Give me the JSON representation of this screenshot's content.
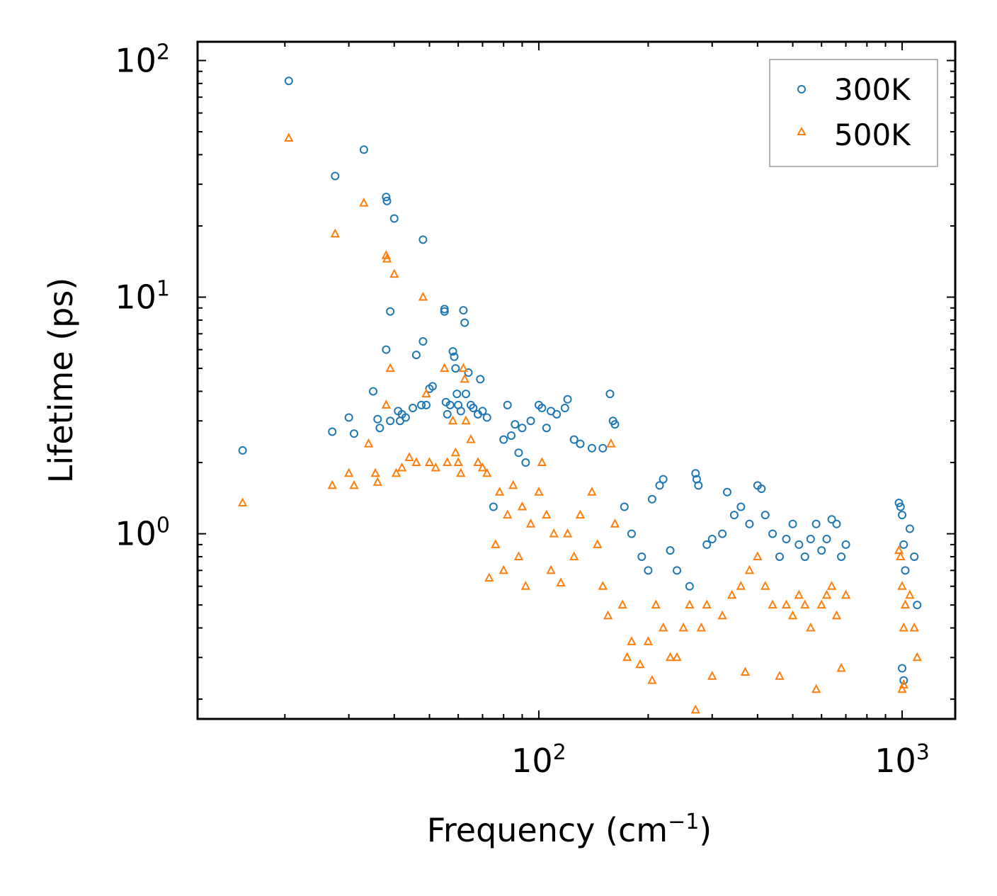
{
  "chart_data": {
    "type": "scatter",
    "xscale": "log",
    "yscale": "log",
    "xlabel": "Frequency (cm",
    "xlabel_superscript": "−1",
    "xlabel_suffix": ")",
    "ylabel": "Lifetime (ps)",
    "xlim": [
      11.5,
      1400
    ],
    "ylim": [
      0.165,
      120
    ],
    "legend_position": "top-right",
    "xtick_labels": [
      {
        "value": 100,
        "base": "10",
        "exp": "2"
      },
      {
        "value": 1000,
        "base": "10",
        "exp": "3"
      }
    ],
    "ytick_labels": [
      {
        "value": 1,
        "base": "10",
        "exp": "0"
      },
      {
        "value": 10,
        "base": "10",
        "exp": "1"
      },
      {
        "value": 100,
        "base": "10",
        "exp": "2"
      }
    ],
    "series": [
      {
        "name": "300K",
        "color": "#1f77b4",
        "marker": "circle",
        "points": [
          [
            15.3,
            2.25
          ],
          [
            20.5,
            82.0
          ],
          [
            27.0,
            2.7
          ],
          [
            27.5,
            32.5
          ],
          [
            30.0,
            3.1
          ],
          [
            31.0,
            2.65
          ],
          [
            33.0,
            42.0
          ],
          [
            35.0,
            4.0
          ],
          [
            36.0,
            3.05
          ],
          [
            36.5,
            2.8
          ],
          [
            38.0,
            26.5
          ],
          [
            38.2,
            25.5
          ],
          [
            38.0,
            6.0
          ],
          [
            39.0,
            8.7
          ],
          [
            39.0,
            3.0
          ],
          [
            40.0,
            21.5
          ],
          [
            41.0,
            3.3
          ],
          [
            41.5,
            3.0
          ],
          [
            42.0,
            3.2
          ],
          [
            43.0,
            3.1
          ],
          [
            45.0,
            3.4
          ],
          [
            46.0,
            5.7
          ],
          [
            47.5,
            3.5
          ],
          [
            48.0,
            17.5
          ],
          [
            48.0,
            6.5
          ],
          [
            49.0,
            3.5
          ],
          [
            50.0,
            4.1
          ],
          [
            51.0,
            4.2
          ],
          [
            55.0,
            8.7
          ],
          [
            55.0,
            8.9
          ],
          [
            55.5,
            3.6
          ],
          [
            56.0,
            3.2
          ],
          [
            57.0,
            3.5
          ],
          [
            58.0,
            5.9
          ],
          [
            58.5,
            5.6
          ],
          [
            59.0,
            5.0
          ],
          [
            59.5,
            3.9
          ],
          [
            60.0,
            3.5
          ],
          [
            61.0,
            3.3
          ],
          [
            62.0,
            8.8
          ],
          [
            62.5,
            7.8
          ],
          [
            63.0,
            3.9
          ],
          [
            64.0,
            4.8
          ],
          [
            65.0,
            3.5
          ],
          [
            66.0,
            3.4
          ],
          [
            68.0,
            3.2
          ],
          [
            69.0,
            4.5
          ],
          [
            70.0,
            3.3
          ],
          [
            72.0,
            3.1
          ],
          [
            75.0,
            1.3
          ],
          [
            80.0,
            2.5
          ],
          [
            82.0,
            3.5
          ],
          [
            84.0,
            2.6
          ],
          [
            86.0,
            2.9
          ],
          [
            88.0,
            2.2
          ],
          [
            90.0,
            2.8
          ],
          [
            92.0,
            2.0
          ],
          [
            95.0,
            3.0
          ],
          [
            100.0,
            3.5
          ],
          [
            102.0,
            3.4
          ],
          [
            105.0,
            2.8
          ],
          [
            108.0,
            3.3
          ],
          [
            112.0,
            3.2
          ],
          [
            118.0,
            3.4
          ],
          [
            120.0,
            3.7
          ],
          [
            125.0,
            2.5
          ],
          [
            130.0,
            2.4
          ],
          [
            140.0,
            2.3
          ],
          [
            150.0,
            2.3
          ],
          [
            157.0,
            3.9
          ],
          [
            160.0,
            3.0
          ],
          [
            162.0,
            2.9
          ],
          [
            172.0,
            1.3
          ],
          [
            180.0,
            1.0
          ],
          [
            192.0,
            0.8
          ],
          [
            200.0,
            0.7
          ],
          [
            205.0,
            1.4
          ],
          [
            215.0,
            1.6
          ],
          [
            220.0,
            1.7
          ],
          [
            230.0,
            0.85
          ],
          [
            240.0,
            0.7
          ],
          [
            260.0,
            0.6
          ],
          [
            270.0,
            1.8
          ],
          [
            272.0,
            1.7
          ],
          [
            275.0,
            1.6
          ],
          [
            290.0,
            0.9
          ],
          [
            300.0,
            0.95
          ],
          [
            320.0,
            1.0
          ],
          [
            330.0,
            1.5
          ],
          [
            345.0,
            1.2
          ],
          [
            360.0,
            1.3
          ],
          [
            380.0,
            1.1
          ],
          [
            400.0,
            1.6
          ],
          [
            410.0,
            1.55
          ],
          [
            420.0,
            1.2
          ],
          [
            440.0,
            1.0
          ],
          [
            460.0,
            0.8
          ],
          [
            480.0,
            0.95
          ],
          [
            500.0,
            1.1
          ],
          [
            520.0,
            0.9
          ],
          [
            540.0,
            0.8
          ],
          [
            560.0,
            0.95
          ],
          [
            580.0,
            1.1
          ],
          [
            600.0,
            0.85
          ],
          [
            620.0,
            0.95
          ],
          [
            640.0,
            1.15
          ],
          [
            660.0,
            1.1
          ],
          [
            680.0,
            0.8
          ],
          [
            700.0,
            0.9
          ],
          [
            980.0,
            1.35
          ],
          [
            990.0,
            1.3
          ],
          [
            1000.0,
            1.2
          ],
          [
            1010.0,
            0.9
          ],
          [
            1020.0,
            0.7
          ],
          [
            1050.0,
            1.05
          ],
          [
            1080.0,
            0.8
          ],
          [
            1100.0,
            0.5
          ],
          [
            1000.0,
            0.27
          ],
          [
            1010.0,
            0.24
          ]
        ]
      },
      {
        "name": "500K",
        "color": "#ff7f0e",
        "marker": "triangle",
        "points": [
          [
            15.3,
            1.35
          ],
          [
            20.5,
            47.0
          ],
          [
            27.0,
            1.6
          ],
          [
            27.5,
            18.5
          ],
          [
            30.0,
            1.8
          ],
          [
            31.0,
            1.6
          ],
          [
            33.0,
            25.0
          ],
          [
            34.0,
            2.4
          ],
          [
            35.5,
            1.8
          ],
          [
            36.0,
            1.65
          ],
          [
            38.0,
            15.0
          ],
          [
            38.2,
            14.5
          ],
          [
            38.0,
            3.5
          ],
          [
            39.0,
            5.0
          ],
          [
            40.0,
            12.5
          ],
          [
            40.5,
            1.8
          ],
          [
            42.0,
            1.9
          ],
          [
            44.0,
            2.1
          ],
          [
            46.0,
            2.0
          ],
          [
            48.0,
            10.0
          ],
          [
            49.0,
            3.9
          ],
          [
            50.0,
            2.0
          ],
          [
            52.0,
            1.9
          ],
          [
            55.0,
            5.0
          ],
          [
            56.0,
            2.0
          ],
          [
            58.0,
            3.0
          ],
          [
            59.0,
            2.2
          ],
          [
            60.0,
            2.0
          ],
          [
            61.0,
            1.8
          ],
          [
            62.0,
            5.0
          ],
          [
            62.5,
            4.5
          ],
          [
            63.0,
            3.0
          ],
          [
            65.0,
            2.5
          ],
          [
            68.0,
            2.0
          ],
          [
            70.0,
            1.9
          ],
          [
            72.0,
            1.8
          ],
          [
            73.0,
            0.65
          ],
          [
            76.0,
            0.9
          ],
          [
            78.0,
            1.5
          ],
          [
            80.0,
            0.7
          ],
          [
            82.0,
            1.2
          ],
          [
            85.0,
            1.6
          ],
          [
            88.0,
            0.8
          ],
          [
            90.0,
            1.3
          ],
          [
            92.0,
            0.6
          ],
          [
            95.0,
            1.1
          ],
          [
            100.0,
            1.5
          ],
          [
            102.0,
            2.0
          ],
          [
            105.0,
            1.2
          ],
          [
            108.0,
            0.7
          ],
          [
            110.0,
            1.0
          ],
          [
            115.0,
            0.62
          ],
          [
            120.0,
            1.0
          ],
          [
            125.0,
            0.8
          ],
          [
            130.0,
            1.2
          ],
          [
            140.0,
            1.5
          ],
          [
            145.0,
            0.9
          ],
          [
            150.0,
            0.6
          ],
          [
            155.0,
            0.45
          ],
          [
            158.0,
            2.4
          ],
          [
            162.0,
            1.1
          ],
          [
            170.0,
            0.5
          ],
          [
            175.0,
            0.3
          ],
          [
            180.0,
            0.35
          ],
          [
            190.0,
            0.28
          ],
          [
            200.0,
            0.35
          ],
          [
            205.0,
            0.24
          ],
          [
            210.0,
            0.5
          ],
          [
            220.0,
            0.4
          ],
          [
            230.0,
            0.3
          ],
          [
            240.0,
            0.3
          ],
          [
            250.0,
            0.4
          ],
          [
            260.0,
            0.5
          ],
          [
            270.0,
            0.18
          ],
          [
            280.0,
            0.4
          ],
          [
            290.0,
            0.5
          ],
          [
            300.0,
            0.25
          ],
          [
            320.0,
            0.45
          ],
          [
            340.0,
            0.55
          ],
          [
            360.0,
            0.6
          ],
          [
            370.0,
            0.26
          ],
          [
            380.0,
            0.7
          ],
          [
            400.0,
            0.8
          ],
          [
            420.0,
            0.6
          ],
          [
            440.0,
            0.5
          ],
          [
            460.0,
            0.25
          ],
          [
            480.0,
            0.5
          ],
          [
            500.0,
            0.45
          ],
          [
            520.0,
            0.55
          ],
          [
            540.0,
            0.5
          ],
          [
            560.0,
            0.4
          ],
          [
            580.0,
            0.22
          ],
          [
            600.0,
            0.5
          ],
          [
            620.0,
            0.55
          ],
          [
            640.0,
            0.6
          ],
          [
            660.0,
            0.45
          ],
          [
            680.0,
            0.27
          ],
          [
            700.0,
            0.55
          ],
          [
            980.0,
            0.85
          ],
          [
            990.0,
            0.8
          ],
          [
            1000.0,
            0.6
          ],
          [
            1010.0,
            0.4
          ],
          [
            1020.0,
            0.5
          ],
          [
            1050.0,
            0.55
          ],
          [
            1080.0,
            0.4
          ],
          [
            1100.0,
            0.3
          ],
          [
            1000.0,
            0.22
          ],
          [
            1010.0,
            0.23
          ]
        ]
      }
    ]
  }
}
